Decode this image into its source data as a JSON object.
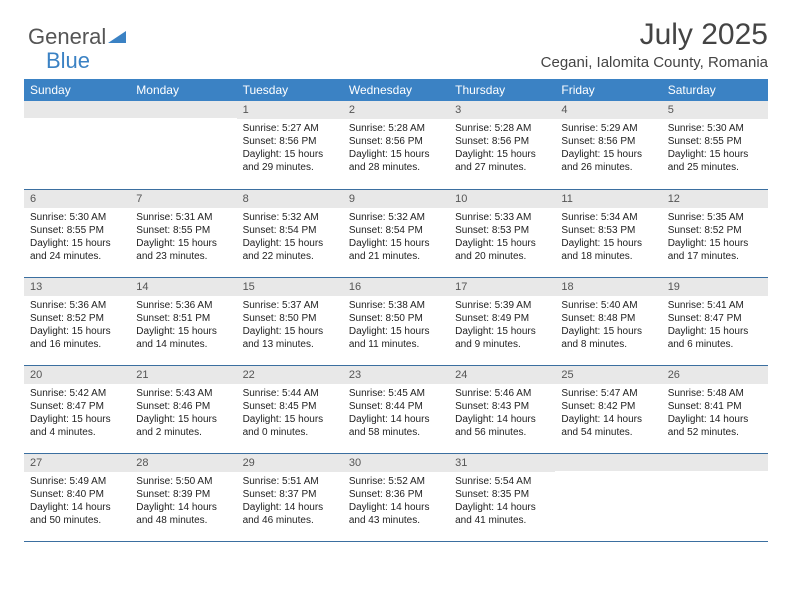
{
  "logo": {
    "text1": "General",
    "text2": "Blue"
  },
  "header": {
    "title": "July 2025",
    "location": "Cegani, Ialomita County, Romania"
  },
  "colors": {
    "header_bg": "#3b82c4",
    "header_fg": "#ffffff",
    "daynum_bg": "#e8e8e8",
    "border": "#3b6fa0"
  },
  "days_of_week": [
    "Sunday",
    "Monday",
    "Tuesday",
    "Wednesday",
    "Thursday",
    "Friday",
    "Saturday"
  ],
  "weeks": [
    [
      {
        "n": "",
        "sunrise": "",
        "sunset": "",
        "daylight": ""
      },
      {
        "n": "",
        "sunrise": "",
        "sunset": "",
        "daylight": ""
      },
      {
        "n": "1",
        "sunrise": "Sunrise: 5:27 AM",
        "sunset": "Sunset: 8:56 PM",
        "daylight": "Daylight: 15 hours and 29 minutes."
      },
      {
        "n": "2",
        "sunrise": "Sunrise: 5:28 AM",
        "sunset": "Sunset: 8:56 PM",
        "daylight": "Daylight: 15 hours and 28 minutes."
      },
      {
        "n": "3",
        "sunrise": "Sunrise: 5:28 AM",
        "sunset": "Sunset: 8:56 PM",
        "daylight": "Daylight: 15 hours and 27 minutes."
      },
      {
        "n": "4",
        "sunrise": "Sunrise: 5:29 AM",
        "sunset": "Sunset: 8:56 PM",
        "daylight": "Daylight: 15 hours and 26 minutes."
      },
      {
        "n": "5",
        "sunrise": "Sunrise: 5:30 AM",
        "sunset": "Sunset: 8:55 PM",
        "daylight": "Daylight: 15 hours and 25 minutes."
      }
    ],
    [
      {
        "n": "6",
        "sunrise": "Sunrise: 5:30 AM",
        "sunset": "Sunset: 8:55 PM",
        "daylight": "Daylight: 15 hours and 24 minutes."
      },
      {
        "n": "7",
        "sunrise": "Sunrise: 5:31 AM",
        "sunset": "Sunset: 8:55 PM",
        "daylight": "Daylight: 15 hours and 23 minutes."
      },
      {
        "n": "8",
        "sunrise": "Sunrise: 5:32 AM",
        "sunset": "Sunset: 8:54 PM",
        "daylight": "Daylight: 15 hours and 22 minutes."
      },
      {
        "n": "9",
        "sunrise": "Sunrise: 5:32 AM",
        "sunset": "Sunset: 8:54 PM",
        "daylight": "Daylight: 15 hours and 21 minutes."
      },
      {
        "n": "10",
        "sunrise": "Sunrise: 5:33 AM",
        "sunset": "Sunset: 8:53 PM",
        "daylight": "Daylight: 15 hours and 20 minutes."
      },
      {
        "n": "11",
        "sunrise": "Sunrise: 5:34 AM",
        "sunset": "Sunset: 8:53 PM",
        "daylight": "Daylight: 15 hours and 18 minutes."
      },
      {
        "n": "12",
        "sunrise": "Sunrise: 5:35 AM",
        "sunset": "Sunset: 8:52 PM",
        "daylight": "Daylight: 15 hours and 17 minutes."
      }
    ],
    [
      {
        "n": "13",
        "sunrise": "Sunrise: 5:36 AM",
        "sunset": "Sunset: 8:52 PM",
        "daylight": "Daylight: 15 hours and 16 minutes."
      },
      {
        "n": "14",
        "sunrise": "Sunrise: 5:36 AM",
        "sunset": "Sunset: 8:51 PM",
        "daylight": "Daylight: 15 hours and 14 minutes."
      },
      {
        "n": "15",
        "sunrise": "Sunrise: 5:37 AM",
        "sunset": "Sunset: 8:50 PM",
        "daylight": "Daylight: 15 hours and 13 minutes."
      },
      {
        "n": "16",
        "sunrise": "Sunrise: 5:38 AM",
        "sunset": "Sunset: 8:50 PM",
        "daylight": "Daylight: 15 hours and 11 minutes."
      },
      {
        "n": "17",
        "sunrise": "Sunrise: 5:39 AM",
        "sunset": "Sunset: 8:49 PM",
        "daylight": "Daylight: 15 hours and 9 minutes."
      },
      {
        "n": "18",
        "sunrise": "Sunrise: 5:40 AM",
        "sunset": "Sunset: 8:48 PM",
        "daylight": "Daylight: 15 hours and 8 minutes."
      },
      {
        "n": "19",
        "sunrise": "Sunrise: 5:41 AM",
        "sunset": "Sunset: 8:47 PM",
        "daylight": "Daylight: 15 hours and 6 minutes."
      }
    ],
    [
      {
        "n": "20",
        "sunrise": "Sunrise: 5:42 AM",
        "sunset": "Sunset: 8:47 PM",
        "daylight": "Daylight: 15 hours and 4 minutes."
      },
      {
        "n": "21",
        "sunrise": "Sunrise: 5:43 AM",
        "sunset": "Sunset: 8:46 PM",
        "daylight": "Daylight: 15 hours and 2 minutes."
      },
      {
        "n": "22",
        "sunrise": "Sunrise: 5:44 AM",
        "sunset": "Sunset: 8:45 PM",
        "daylight": "Daylight: 15 hours and 0 minutes."
      },
      {
        "n": "23",
        "sunrise": "Sunrise: 5:45 AM",
        "sunset": "Sunset: 8:44 PM",
        "daylight": "Daylight: 14 hours and 58 minutes."
      },
      {
        "n": "24",
        "sunrise": "Sunrise: 5:46 AM",
        "sunset": "Sunset: 8:43 PM",
        "daylight": "Daylight: 14 hours and 56 minutes."
      },
      {
        "n": "25",
        "sunrise": "Sunrise: 5:47 AM",
        "sunset": "Sunset: 8:42 PM",
        "daylight": "Daylight: 14 hours and 54 minutes."
      },
      {
        "n": "26",
        "sunrise": "Sunrise: 5:48 AM",
        "sunset": "Sunset: 8:41 PM",
        "daylight": "Daylight: 14 hours and 52 minutes."
      }
    ],
    [
      {
        "n": "27",
        "sunrise": "Sunrise: 5:49 AM",
        "sunset": "Sunset: 8:40 PM",
        "daylight": "Daylight: 14 hours and 50 minutes."
      },
      {
        "n": "28",
        "sunrise": "Sunrise: 5:50 AM",
        "sunset": "Sunset: 8:39 PM",
        "daylight": "Daylight: 14 hours and 48 minutes."
      },
      {
        "n": "29",
        "sunrise": "Sunrise: 5:51 AM",
        "sunset": "Sunset: 8:37 PM",
        "daylight": "Daylight: 14 hours and 46 minutes."
      },
      {
        "n": "30",
        "sunrise": "Sunrise: 5:52 AM",
        "sunset": "Sunset: 8:36 PM",
        "daylight": "Daylight: 14 hours and 43 minutes."
      },
      {
        "n": "31",
        "sunrise": "Sunrise: 5:54 AM",
        "sunset": "Sunset: 8:35 PM",
        "daylight": "Daylight: 14 hours and 41 minutes."
      },
      {
        "n": "",
        "sunrise": "",
        "sunset": "",
        "daylight": ""
      },
      {
        "n": "",
        "sunrise": "",
        "sunset": "",
        "daylight": ""
      }
    ]
  ]
}
